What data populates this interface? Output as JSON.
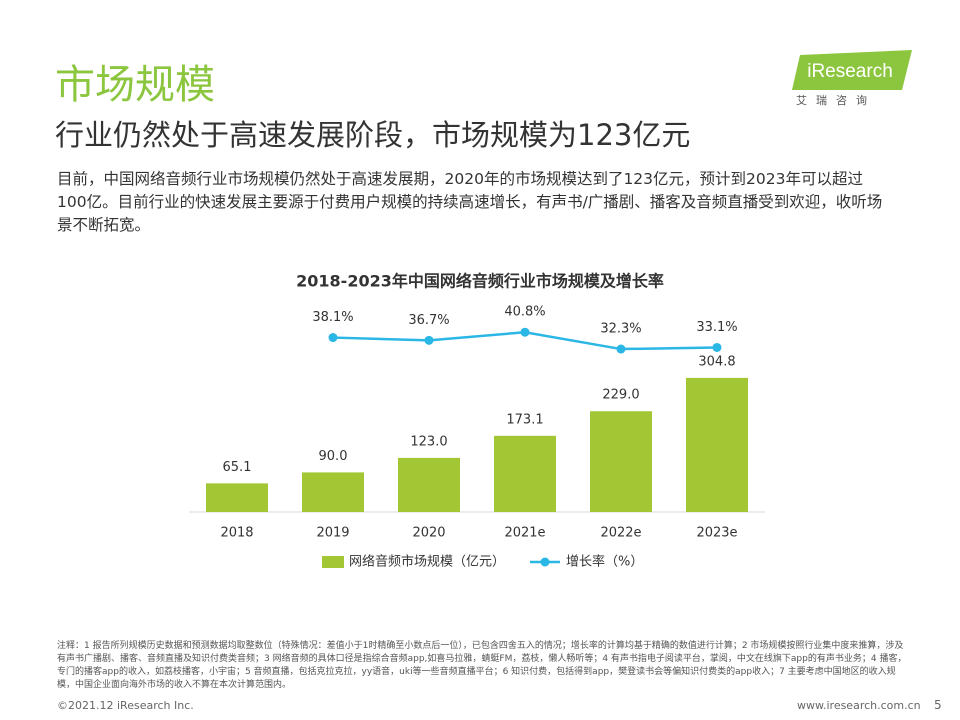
{
  "header": {
    "title": "市场规模",
    "subtitle": "行业仍然处于高速发展阶段，市场规模为123亿元",
    "logo": "iResearch",
    "logo_cn": "艾瑞咨询"
  },
  "body": "目前，中国网络音频行业市场规模仍然处于高速发展期，2020年的市场规模达到了123亿元，预计到2023年可以超过100亿。目前行业的快速发展主要源于付费用户规模的持续高速增长，有声书/广播剧、播客及音频直播受到欢迎，收听场景不断拓宽。",
  "chart_data": {
    "type": "bar",
    "title": "2018-2023年中国网络音频行业市场规模及增长率",
    "categories": [
      "2018",
      "2019",
      "2020",
      "2021e",
      "2022e",
      "2023e"
    ],
    "series": [
      {
        "name": "网络音频市场规模（亿元）",
        "color": "#a2c634",
        "values": [
          65.1,
          90.0,
          123.0,
          173.1,
          229.0,
          304.8
        ],
        "value_labels": [
          "65.1",
          "90.0",
          "123.0",
          "173.1",
          "229.0",
          "304.8"
        ]
      },
      {
        "name": "增长率（%）",
        "type": "line",
        "axis": "y2",
        "color": "#2bb7e6",
        "values": [
          null,
          38.1,
          36.7,
          40.8,
          32.3,
          33.1
        ],
        "value_labels": [
          null,
          "38.1%",
          "36.7%",
          "40.8%",
          "32.3%",
          "33.1%"
        ]
      }
    ],
    "ylim": [
      0,
      450
    ],
    "y2lim": [
      -50,
      50
    ],
    "legend": "bottom"
  },
  "footnote": "注释：1 报告所列规模历史数据和预测数据均取整数位（特殊情况：差值小于1时精确至小数点后一位），已包含四舍五入的情况；增长率的计算均基于精确的数值进行计算；2 市场规模按照行业集中度来推算，涉及有声书广播剧、播客、音频直播及知识付费类音频；3 网络音频的具体口径是指综合音频app,如喜马拉雅，蜻蜓FM，荔枝，懒人畅听等；4 有声书指电子阅读平台，掌阅，中文在线旗下app的有声书业务；4 播客，专门的播客app的收入，如荔枝播客，小宇宙；5 音频直播，包括克拉克拉，yy语音，uki等一些音频直播平台；6 知识付费，包括得到app，樊登读书会等偏知识付费类的app收入；7 主要考虑中国地区的收入规模，中国企业面向海外市场的收入不算在本次计算范围内。",
  "footer": {
    "copyright": "©2021.12 iResearch Inc.",
    "url": "www.iresearch.com.cn",
    "page": "5"
  }
}
